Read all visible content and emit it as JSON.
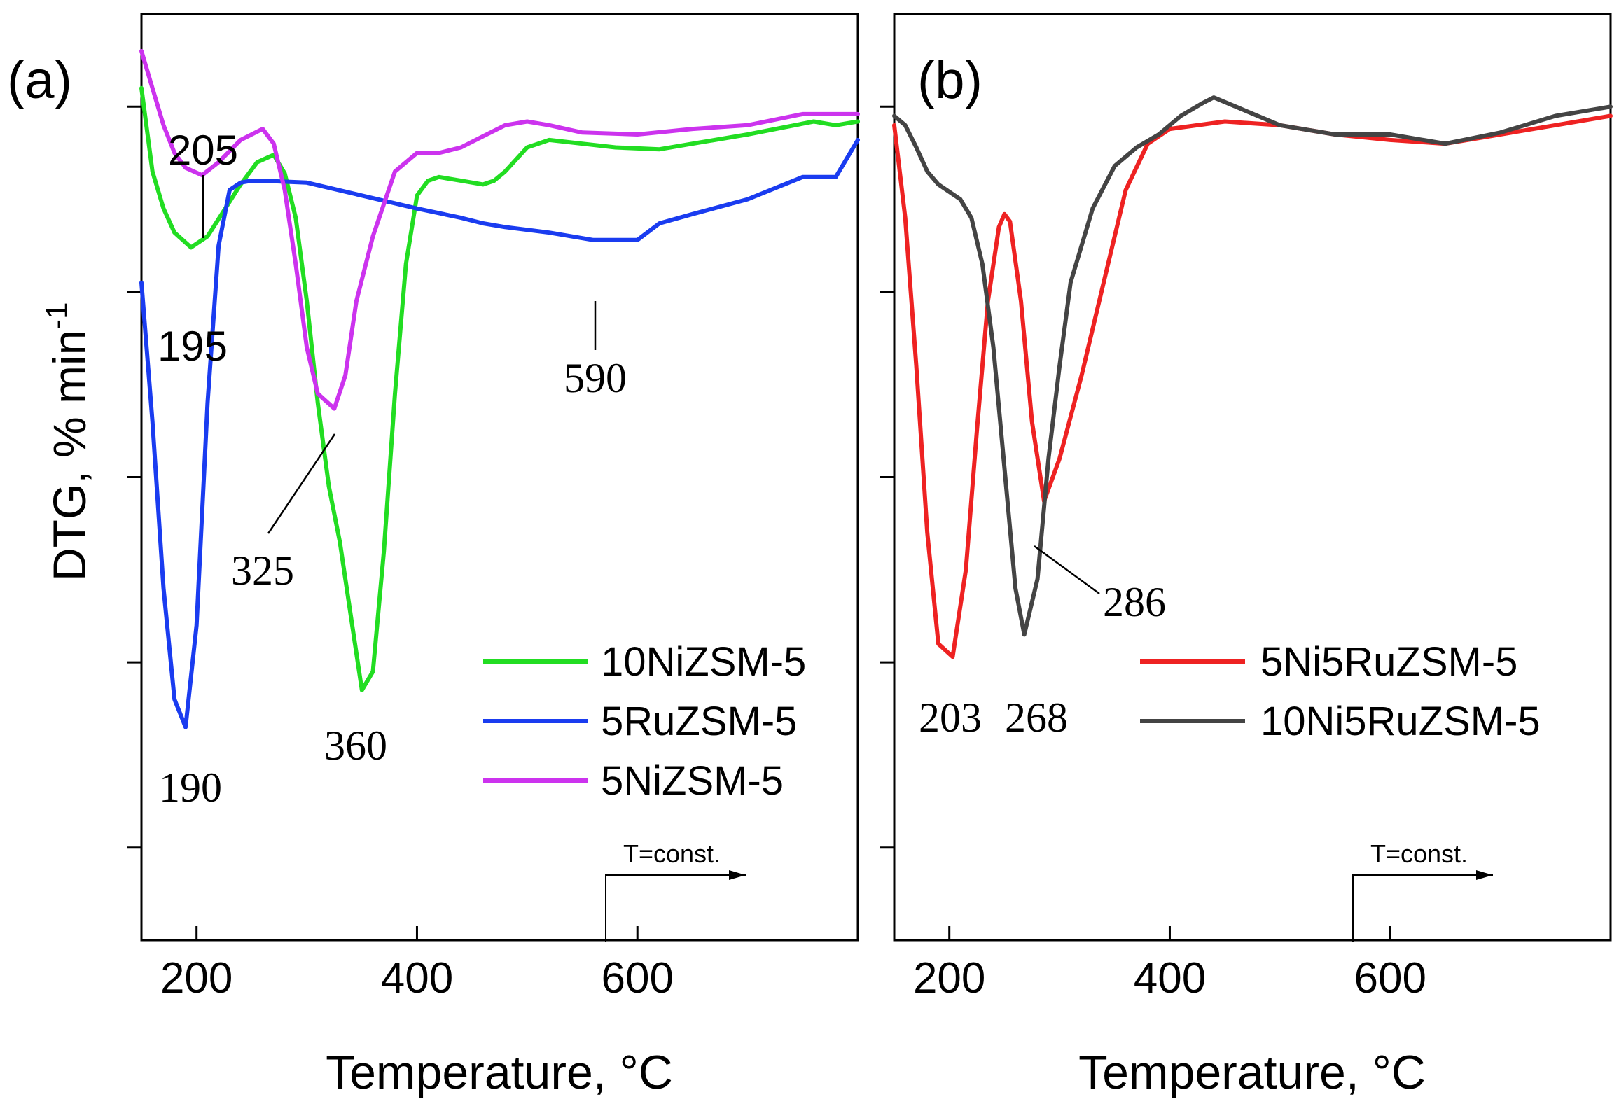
{
  "figure": {
    "y_axis_label": "DTG, % min",
    "y_axis_label_sup": "-1",
    "x_axis_label": "Temperature, °C"
  },
  "chart_data": [
    {
      "type": "line",
      "panel_label": "(a)",
      "xlabel": "Temperature, °C",
      "ylabel": "DTG, % min-1",
      "xlim": [
        150,
        800
      ],
      "ylim": [
        -4.5,
        0.5
      ],
      "x_ticks": [
        200,
        400,
        600
      ],
      "y_ticks_unlabeled": [
        0,
        -1,
        -2,
        -3,
        -4
      ],
      "legend_position": "lower-right",
      "series": [
        {
          "name": "10NiZSM-5",
          "color": "#22dd22",
          "x": [
            150,
            160,
            170,
            180,
            195,
            210,
            225,
            240,
            255,
            270,
            280,
            290,
            300,
            310,
            320,
            330,
            340,
            350,
            360,
            370,
            380,
            390,
            400,
            410,
            420,
            440,
            460,
            470,
            480,
            500,
            520,
            550,
            580,
            620,
            650,
            700,
            760,
            780,
            800
          ],
          "y": [
            0.1,
            -0.35,
            -0.55,
            -0.68,
            -0.76,
            -0.7,
            -0.56,
            -0.42,
            -0.3,
            -0.26,
            -0.36,
            -0.6,
            -1.05,
            -1.6,
            -2.05,
            -2.35,
            -2.75,
            -3.15,
            -3.05,
            -2.4,
            -1.55,
            -0.85,
            -0.48,
            -0.4,
            -0.38,
            -0.4,
            -0.42,
            -0.4,
            -0.35,
            -0.22,
            -0.18,
            -0.2,
            -0.22,
            -0.23,
            -0.2,
            -0.15,
            -0.08,
            -0.1,
            -0.08
          ]
        },
        {
          "name": "5RuZSM-5",
          "color": "#1a3cf0",
          "x": [
            150,
            160,
            170,
            180,
            190,
            200,
            210,
            220,
            230,
            240,
            250,
            260,
            300,
            350,
            400,
            440,
            460,
            480,
            520,
            560,
            590,
            600,
            620,
            650,
            700,
            750,
            780,
            800
          ],
          "y": [
            -0.95,
            -1.7,
            -2.6,
            -3.2,
            -3.35,
            -2.8,
            -1.6,
            -0.75,
            -0.45,
            -0.41,
            -0.4,
            -0.4,
            -0.41,
            -0.48,
            -0.55,
            -0.6,
            -0.63,
            -0.65,
            -0.68,
            -0.72,
            -0.72,
            -0.72,
            -0.63,
            -0.58,
            -0.5,
            -0.38,
            -0.38,
            -0.18
          ]
        },
        {
          "name": "5NiZSM-5",
          "color": "#cc33ee",
          "x": [
            150,
            160,
            170,
            180,
            190,
            205,
            220,
            240,
            260,
            270,
            280,
            290,
            300,
            310,
            325,
            335,
            345,
            360,
            380,
            400,
            420,
            440,
            460,
            480,
            500,
            520,
            550,
            600,
            650,
            700,
            750,
            800
          ],
          "y": [
            0.3,
            0.1,
            -0.1,
            -0.25,
            -0.33,
            -0.37,
            -0.3,
            -0.18,
            -0.12,
            -0.2,
            -0.45,
            -0.85,
            -1.3,
            -1.55,
            -1.63,
            -1.45,
            -1.05,
            -0.7,
            -0.35,
            -0.25,
            -0.25,
            -0.22,
            -0.16,
            -0.1,
            -0.08,
            -0.1,
            -0.14,
            -0.15,
            -0.12,
            -0.1,
            -0.04,
            -0.04
          ]
        }
      ],
      "annotations": [
        "205",
        "195",
        "190",
        "325",
        "360",
        "590"
      ],
      "arrow_label": "T=const."
    },
    {
      "type": "line",
      "panel_label": "(b)",
      "xlabel": "Temperature, °C",
      "ylabel": "DTG, % min-1",
      "xlim": [
        150,
        800
      ],
      "ylim": [
        -4.5,
        0.5
      ],
      "x_ticks": [
        200,
        400,
        600
      ],
      "y_ticks_unlabeled": [
        0,
        -1,
        -2,
        -3,
        -4
      ],
      "legend_position": "lower-right",
      "series": [
        {
          "name": "5Ni5RuZSM-5",
          "color": "#ee2222",
          "x": [
            150,
            160,
            170,
            180,
            190,
            203,
            215,
            225,
            235,
            245,
            250,
            255,
            265,
            275,
            286,
            300,
            320,
            340,
            360,
            380,
            400,
            450,
            500,
            550,
            600,
            650,
            700,
            750,
            800
          ],
          "y": [
            -0.1,
            -0.6,
            -1.4,
            -2.3,
            -2.9,
            -2.97,
            -2.5,
            -1.75,
            -1.05,
            -0.65,
            -0.58,
            -0.62,
            -1.05,
            -1.7,
            -2.13,
            -1.9,
            -1.45,
            -0.95,
            -0.45,
            -0.2,
            -0.12,
            -0.08,
            -0.1,
            -0.15,
            -0.18,
            -0.2,
            -0.15,
            -0.1,
            -0.05
          ]
        },
        {
          "name": "10Ni5RuZSM-5",
          "color": "#444444",
          "x": [
            150,
            160,
            170,
            180,
            190,
            200,
            210,
            220,
            230,
            240,
            250,
            260,
            268,
            280,
            290,
            300,
            310,
            330,
            350,
            370,
            390,
            410,
            430,
            440,
            460,
            500,
            550,
            600,
            650,
            700,
            750,
            800
          ],
          "y": [
            -0.05,
            -0.1,
            -0.22,
            -0.35,
            -0.42,
            -0.46,
            -0.5,
            -0.6,
            -0.85,
            -1.3,
            -1.95,
            -2.6,
            -2.85,
            -2.55,
            -1.9,
            -1.4,
            -0.95,
            -0.55,
            -0.32,
            -0.22,
            -0.15,
            -0.05,
            0.02,
            0.05,
            0.0,
            -0.1,
            -0.15,
            -0.15,
            -0.2,
            -0.14,
            -0.05,
            0.0
          ]
        }
      ],
      "annotations": [
        "203",
        "268",
        "286"
      ],
      "arrow_label": "T=const."
    }
  ]
}
